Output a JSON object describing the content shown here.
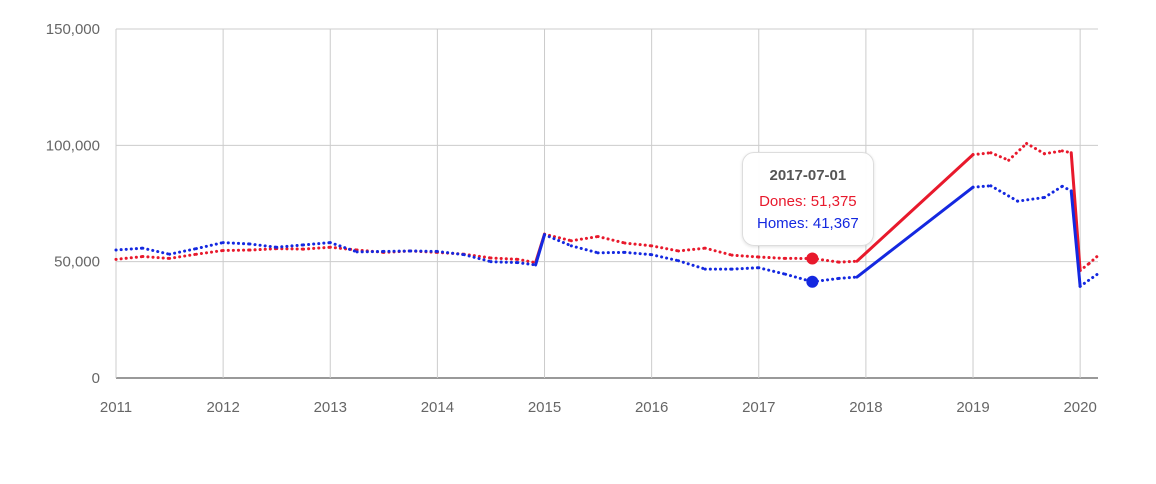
{
  "chart_data": {
    "type": "line",
    "x_type": "date",
    "xlim": [
      "2011-01-01",
      "2020-03-01"
    ],
    "ylim": [
      0,
      150000
    ],
    "grid": true,
    "x_ticks": [
      "2011",
      "2012",
      "2013",
      "2014",
      "2015",
      "2016",
      "2017",
      "2018",
      "2019",
      "2020"
    ],
    "y_ticks": [
      "0",
      "50,000",
      "100,000",
      "150,000"
    ],
    "series": [
      {
        "name": "Dones",
        "color": "#e8192c",
        "points": [
          [
            "2011-01-01",
            51000
          ],
          [
            "2011-04-01",
            52200
          ],
          [
            "2011-07-01",
            51400
          ],
          [
            "2011-10-01",
            53200
          ],
          [
            "2012-01-01",
            54800
          ],
          [
            "2012-04-01",
            55000
          ],
          [
            "2012-07-01",
            55600
          ],
          [
            "2012-10-01",
            55400
          ],
          [
            "2013-01-01",
            56200
          ],
          [
            "2013-04-01",
            55000
          ],
          [
            "2013-07-01",
            54000
          ],
          [
            "2013-10-01",
            54600
          ],
          [
            "2014-01-01",
            54000
          ],
          [
            "2014-04-01",
            53200
          ],
          [
            "2014-07-01",
            51600
          ],
          [
            "2014-10-01",
            51000
          ],
          [
            "2014-12-01",
            49600
          ],
          [
            "2015-01-01",
            61800
          ],
          [
            "2015-04-01",
            59000
          ],
          [
            "2015-07-01",
            60800
          ],
          [
            "2015-10-01",
            58000
          ],
          [
            "2016-01-01",
            56800
          ],
          [
            "2016-04-01",
            54600
          ],
          [
            "2016-07-01",
            55800
          ],
          [
            "2016-10-01",
            52800
          ],
          [
            "2017-01-01",
            52000
          ],
          [
            "2017-04-01",
            51400
          ],
          [
            "2017-07-01",
            51375
          ],
          [
            "2017-10-01",
            49800
          ],
          [
            "2017-12-01",
            50200
          ],
          [
            "2019-01-01",
            96000
          ],
          [
            "2019-03-01",
            96800
          ],
          [
            "2019-05-01",
            93600
          ],
          [
            "2019-07-01",
            100800
          ],
          [
            "2019-09-01",
            96400
          ],
          [
            "2019-11-01",
            97600
          ],
          [
            "2019-12-01",
            96800
          ],
          [
            "2020-01-01",
            46200
          ],
          [
            "2020-02-01",
            49200
          ],
          [
            "2020-03-01",
            52600
          ]
        ]
      },
      {
        "name": "Homes",
        "color": "#1428e0",
        "points": [
          [
            "2011-01-01",
            55000
          ],
          [
            "2011-04-01",
            55800
          ],
          [
            "2011-07-01",
            53200
          ],
          [
            "2011-10-01",
            55600
          ],
          [
            "2012-01-01",
            58200
          ],
          [
            "2012-04-01",
            57600
          ],
          [
            "2012-07-01",
            56200
          ],
          [
            "2012-10-01",
            57200
          ],
          [
            "2013-01-01",
            58200
          ],
          [
            "2013-04-01",
            54200
          ],
          [
            "2013-07-01",
            54400
          ],
          [
            "2013-10-01",
            54600
          ],
          [
            "2014-01-01",
            54400
          ],
          [
            "2014-04-01",
            53000
          ],
          [
            "2014-07-01",
            50000
          ],
          [
            "2014-10-01",
            49600
          ],
          [
            "2014-12-01",
            48600
          ],
          [
            "2015-01-01",
            61600
          ],
          [
            "2015-04-01",
            56800
          ],
          [
            "2015-07-01",
            53800
          ],
          [
            "2015-10-01",
            54000
          ],
          [
            "2016-01-01",
            53000
          ],
          [
            "2016-04-01",
            50400
          ],
          [
            "2016-07-01",
            46800
          ],
          [
            "2016-10-01",
            46800
          ],
          [
            "2017-01-01",
            47400
          ],
          [
            "2017-04-01",
            44600
          ],
          [
            "2017-07-01",
            41367
          ],
          [
            "2017-10-01",
            42800
          ],
          [
            "2017-12-01",
            43400
          ],
          [
            "2019-01-01",
            82000
          ],
          [
            "2019-03-01",
            82600
          ],
          [
            "2019-06-01",
            76000
          ],
          [
            "2019-09-01",
            77600
          ],
          [
            "2019-11-01",
            82400
          ],
          [
            "2019-12-01",
            80400
          ],
          [
            "2020-01-01",
            39400
          ],
          [
            "2020-03-01",
            44800
          ]
        ]
      }
    ],
    "tooltip": {
      "date": "2017-07-01",
      "rows": [
        {
          "label": "Dones: 51,375",
          "color": "#e8192c",
          "value": 51375
        },
        {
          "label": "Homes: 41,367",
          "color": "#1428e0",
          "value": 41367
        }
      ]
    }
  }
}
